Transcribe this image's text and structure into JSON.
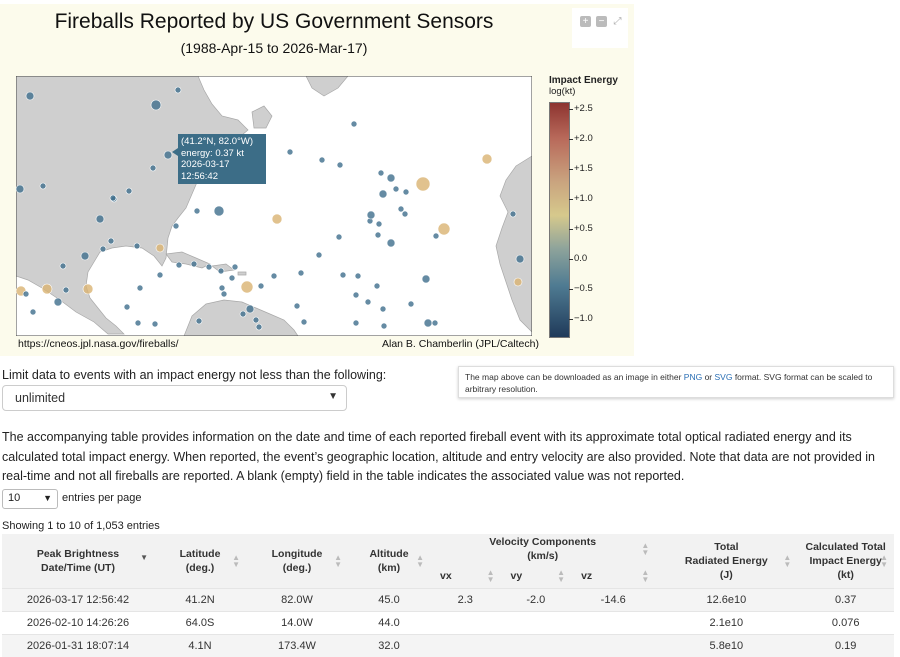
{
  "figure": {
    "title": "Fireballs Reported by US Government Sensors",
    "subtitle": "(1988-Apr-15 to 2026-Mar-17)",
    "credit_left": "https://cneos.jpl.nasa.gov/fireballs/",
    "credit_right": "Alan B. Chamberlin (JPL/Caltech)",
    "toolbar": {
      "zoom_in": "+",
      "zoom_out": "−",
      "fullscreen": "⤢"
    },
    "tooltip": {
      "line1": "(41.2°N, 82.0°W)",
      "line2": "energy: 0.37 kt",
      "line3": "2026-03-17 12:56:42"
    },
    "colorbar": {
      "title": "Impact Energy",
      "unit": "log(kt)",
      "ticks": [
        "+2.5",
        "+2.0",
        "+1.5",
        "+1.0",
        "+0.5",
        "0.0",
        "−0.5",
        "−1.0"
      ],
      "colors": [
        "#8d3430",
        "#c9a27e",
        "#d6c98c",
        "#4f7b92",
        "#1f3a5a"
      ]
    },
    "map": {
      "land_color": "#cfcfcf",
      "water_color": "#ffffff",
      "marker_color_low": "#3f6e8c",
      "marker_color_high": "#d9b372"
    }
  },
  "controls": {
    "limit_label": "Limit data to events with an impact energy not less than the following:",
    "limit_value": "unlimited",
    "note_before": "The map above can be downloaded as an image in either ",
    "note_png": "PNG",
    "note_or": " or ",
    "note_svg": "SVG",
    "note_after": " format. SVG format can be scaled to arbitrary resolution."
  },
  "description": "The accompanying table provides information on the date and time of each reported fireball event with its approximate total optical radiated energy and its calculated total impact energy. When reported, the event’s geographic location, altitude and entry velocity are also provided. Note that data are not provided in real-time and not all fireballs are reported. A blank (empty) field in the table indicates the associated value was not reported.",
  "paging": {
    "per_page_value": "10",
    "per_page_label": "entries per page",
    "showing": "Showing 1 to 10 of 1,053 entries"
  },
  "table": {
    "headers": {
      "date_1": "Peak Brightness",
      "date_2": "Date/Time (UT)",
      "lat_1": "Latitude",
      "lat_2": "(deg.)",
      "lon_1": "Longitude",
      "lon_2": "(deg.)",
      "alt_1": "Altitude",
      "alt_2": "(km)",
      "vel_1": "Velocity Components",
      "vel_2": "(km/s)",
      "vx": "vx",
      "vy": "vy",
      "vz": "vz",
      "rad_1": "Total",
      "rad_2": "Radiated Energy",
      "rad_3": "(J)",
      "imp_1": "Calculated Total",
      "imp_2": "Impact Energy",
      "imp_3": "(kt)"
    },
    "rows": [
      {
        "date": "2026-03-17 12:56:42",
        "lat": "41.2N",
        "lon": "82.0W",
        "alt": "45.0",
        "vx": "2.3",
        "vy": "-2.0",
        "vz": "-14.6",
        "rad": "12.6e10",
        "imp": "0.37"
      },
      {
        "date": "2026-02-10 14:26:26",
        "lat": "64.0S",
        "lon": "14.0W",
        "alt": "44.0",
        "vx": "",
        "vy": "",
        "vz": "",
        "rad": "2.1e10",
        "imp": "0.076"
      },
      {
        "date": "2026-01-31 18:07:14",
        "lat": "4.1N",
        "lon": "173.4W",
        "alt": "32.0",
        "vx": "",
        "vy": "",
        "vz": "",
        "rad": "5.8e10",
        "imp": "0.19"
      }
    ]
  }
}
